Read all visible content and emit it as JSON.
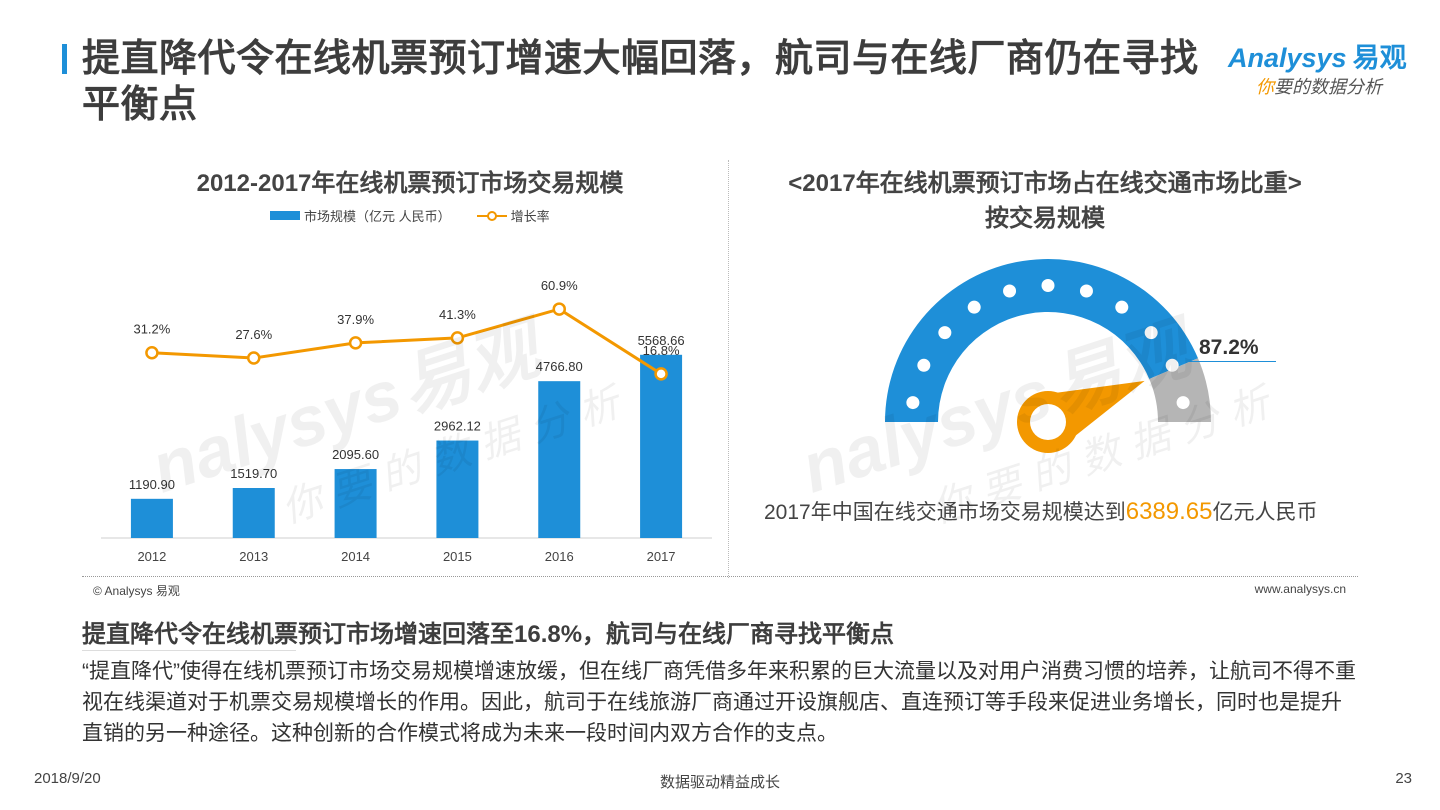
{
  "page": {
    "title": "提直降代令在线机票预订增速大幅回落，航司与在线厂商仍在寻找平衡点",
    "logo": {
      "brand_text": "nalysys",
      "brand_letter": "A",
      "brand_cn": "易观",
      "tagline_orange": "你",
      "tagline_rest": "要的数据分析"
    },
    "source_left": "© Analysys 易观",
    "source_right": "www.analysys.cn",
    "summary_title": "提直降代令在线机票预订市场增速回落至16.8%，航司与在线厂商寻找平衡点",
    "summary_text": "“提直降代”使得在线机票预订市场交易规模增速放缓，但在线厂商凭借多年来积累的巨大流量以及对用户消费习惯的培养，让航司不得不重视在线渠道对于机票交易规模增长的作用。因此，航司于在线旅游厂商通过开设旗舰店、直连预订等手段来促进业务增长，同时也是提升直销的另一种途径。这种创新的合作模式将成为未来一段时间内双方合作的支点。",
    "footer_date": "2018/9/20",
    "footer_center": "数据驱动精益成长",
    "footer_page": "23",
    "watermark_main": "易观",
    "watermark_brand": "nalysys",
    "watermark_sub": "你要的数据分析",
    "accent_blue": "#1e8fd8",
    "accent_orange": "#f39800",
    "gauge_grey": "#b5b5b5"
  },
  "chart_data": [
    {
      "type": "bar",
      "title": "2012-2017年在线机票预订市场交易规模",
      "categories": [
        "2012",
        "2013",
        "2014",
        "2015",
        "2016",
        "2017"
      ],
      "series": [
        {
          "name": "市场规模（亿元 人民币）",
          "type": "bar",
          "values": [
            1190.9,
            1519.7,
            2095.6,
            2962.12,
            4766.8,
            5568.66
          ],
          "labels": [
            "1190.90",
            "1519.70",
            "2095.60",
            "2962.12",
            "4766.80",
            "5568.66"
          ]
        },
        {
          "name": "增长率",
          "type": "line",
          "values": [
            31.2,
            27.6,
            37.9,
            41.3,
            60.9,
            16.8
          ],
          "labels": [
            "31.2%",
            "27.6%",
            "37.9%",
            "41.3%",
            "60.9%",
            "16.8%"
          ]
        }
      ],
      "legend_position": "top-center",
      "grid": false
    },
    {
      "type": "gauge",
      "title_line1": "2017年在线机票预订市场占在线交通市场比重",
      "title_line2": "按交易规模",
      "value": 87.2,
      "value_label": "87.2%",
      "total_text_prefix": "2017年中国在线交通市场交易规模达到",
      "total_value": "6389.65",
      "total_text_suffix": "亿元人民币"
    }
  ]
}
